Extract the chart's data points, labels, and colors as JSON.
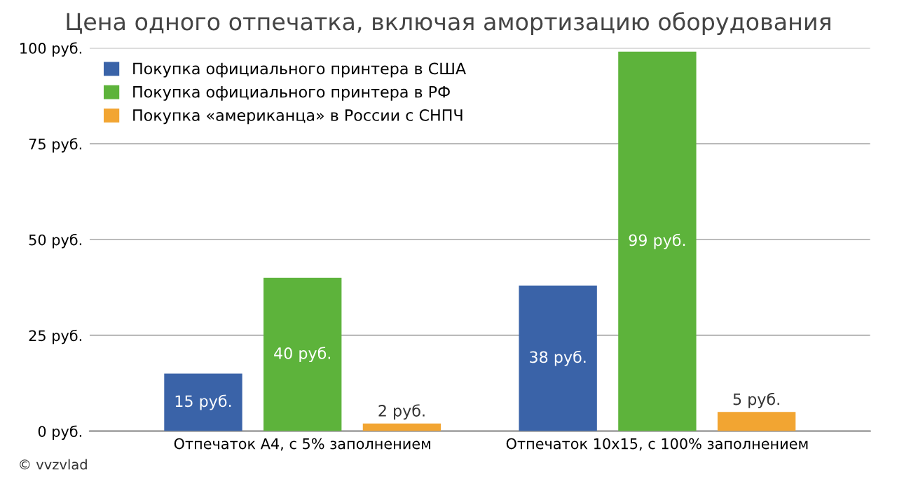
{
  "chart_data": {
    "type": "bar",
    "title": "Цена одного отпечатка, включая амортизацию оборудования",
    "categories": [
      "Отпечаток А4, с 5% заполнением",
      "Отпечаток 10х15, с 100% заполнением"
    ],
    "series": [
      {
        "name": "Покупка официального принтера в США",
        "color": "#3a63a8",
        "values": [
          15,
          38
        ],
        "value_labels": [
          "15 руб.",
          "38 руб."
        ]
      },
      {
        "name": "Покупка официального принтера в РФ",
        "color": "#5db33b",
        "values": [
          40,
          99
        ],
        "value_labels": [
          "40 руб.",
          "99 руб."
        ]
      },
      {
        "name": "Покупка «американца» в России с СНПЧ",
        "color": "#f2a532",
        "values": [
          2,
          5
        ],
        "value_labels": [
          "2 руб.",
          "5 руб."
        ]
      }
    ],
    "ylim": [
      0,
      100
    ],
    "yticks": [
      {
        "value": 0,
        "label": "0 руб."
      },
      {
        "value": 25,
        "label": "25 руб."
      },
      {
        "value": 50,
        "label": "50 руб."
      },
      {
        "value": 75,
        "label": "75 руб."
      },
      {
        "value": 100,
        "label": "100 руб."
      }
    ],
    "grid": "y",
    "legend": "top left",
    "annotations": [
      "© vvzvlad"
    ]
  }
}
